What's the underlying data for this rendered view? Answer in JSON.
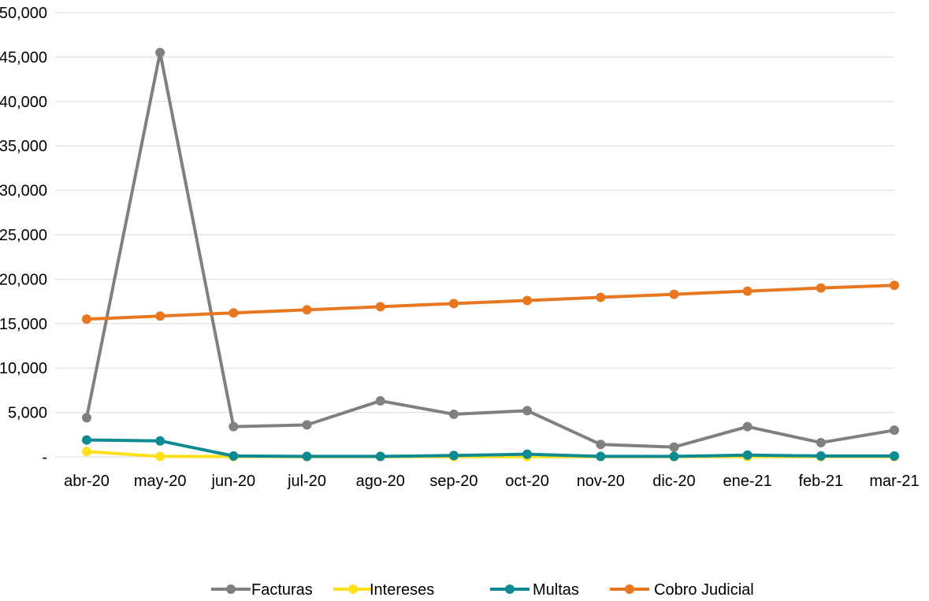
{
  "chart_data": {
    "type": "line",
    "title": "",
    "xlabel": "",
    "ylabel": "",
    "categories": [
      "abr-20",
      "may-20",
      "jun-20",
      "jul-20",
      "ago-20",
      "sep-20",
      "oct-20",
      "nov-20",
      "dic-20",
      "ene-21",
      "feb-21",
      "mar-21"
    ],
    "ylim": [
      0,
      50000
    ],
    "yticks": [
      0,
      5000,
      10000,
      15000,
      20000,
      25000,
      30000,
      35000,
      40000,
      45000,
      50000
    ],
    "ytick_labels": [
      "-",
      "5,000",
      "10,000",
      "15,000",
      "20,000",
      "25,000",
      "30,000",
      "35,000",
      "40,000",
      "45,000",
      "50,000"
    ],
    "grid": true,
    "legend_position": "bottom",
    "series": [
      {
        "name": "Facturas",
        "color": "#808080",
        "values": [
          4400,
          45500,
          3400,
          3600,
          6300,
          4800,
          5200,
          1400,
          1100,
          3400,
          1600,
          3000
        ]
      },
      {
        "name": "Intereses",
        "color": "#FFE01B",
        "values": [
          600,
          50,
          30,
          20,
          20,
          20,
          20,
          20,
          20,
          20,
          20,
          20
        ]
      },
      {
        "name": "Multas",
        "color": "#0E8A92",
        "values": [
          1900,
          1800,
          100,
          50,
          50,
          150,
          300,
          50,
          50,
          200,
          100,
          100
        ]
      },
      {
        "name": "Cobro Judicial",
        "color": "#E87722",
        "values": [
          15500,
          15850,
          16200,
          16550,
          16900,
          17250,
          17600,
          17950,
          18300,
          18650,
          19000,
          19300
        ]
      }
    ]
  }
}
